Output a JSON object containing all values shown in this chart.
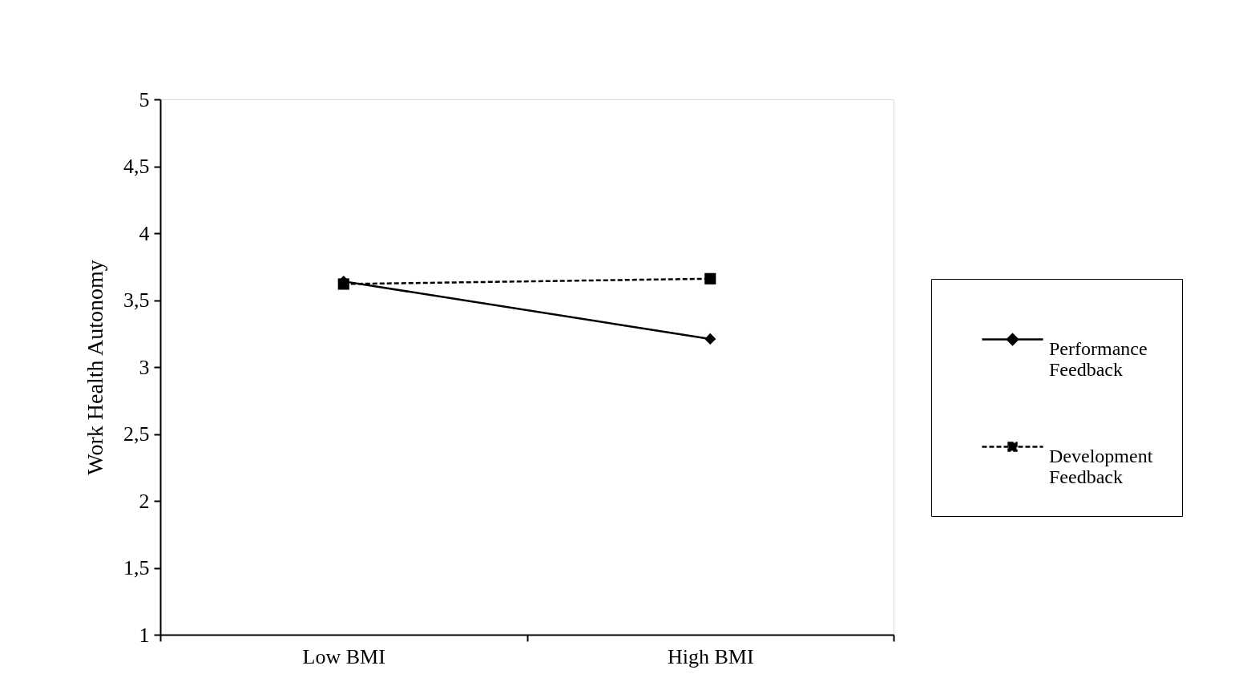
{
  "chart_data": {
    "type": "line",
    "ylabel": "Work Health Autonomy",
    "categories": [
      "Low BMI",
      "High BMI"
    ],
    "series": [
      {
        "name": "Performance Feedback",
        "color": "#000000",
        "values": [
          3.64,
          3.21
        ],
        "marker": "diamond",
        "line_style": "solid"
      },
      {
        "name": "Development Feedback",
        "color": "#000000",
        "values": [
          3.62,
          3.66
        ],
        "marker": "square",
        "line_style": "dashed"
      }
    ],
    "ylim": [
      1,
      5
    ],
    "yticks": [
      1,
      {
        "value": 1.5,
        "label": "1,5"
      },
      2,
      {
        "value": 2.5,
        "label": "2,5"
      },
      3,
      {
        "value": 3.5,
        "label": "3,5"
      },
      4,
      {
        "value": 4.5,
        "label": "4,5"
      },
      5
    ],
    "grid": false,
    "legend": "right"
  }
}
